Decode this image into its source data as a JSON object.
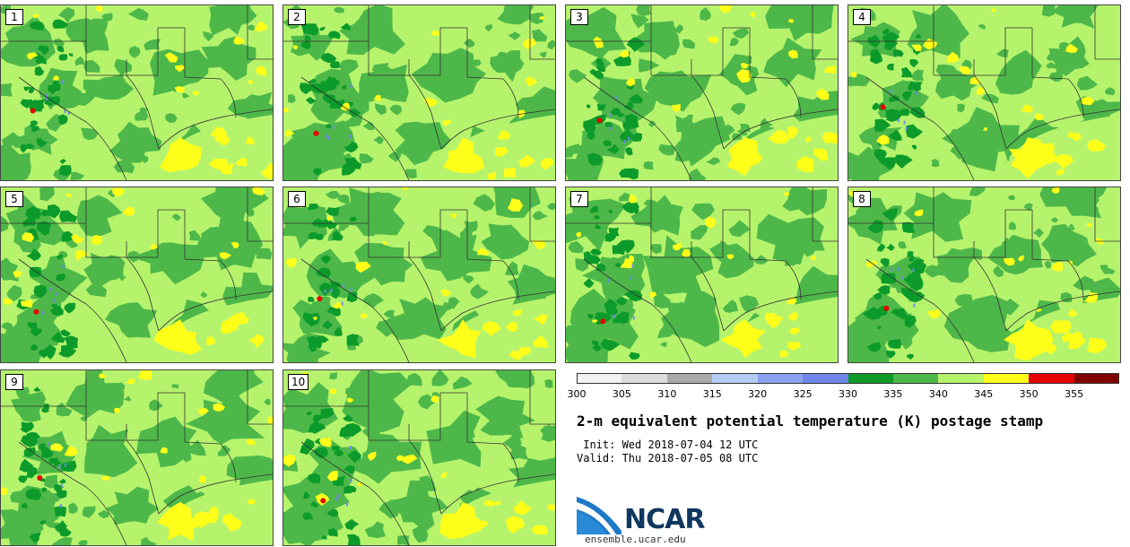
{
  "stamps": [
    {
      "label": "1"
    },
    {
      "label": "2"
    },
    {
      "label": "3"
    },
    {
      "label": "4"
    },
    {
      "label": "5"
    },
    {
      "label": "6"
    },
    {
      "label": "7"
    },
    {
      "label": "8"
    },
    {
      "label": "9"
    },
    {
      "label": "10"
    }
  ],
  "colorbar": {
    "ticks": [
      "300",
      "305",
      "310",
      "315",
      "320",
      "325",
      "330",
      "335",
      "340",
      "345",
      "350",
      "355"
    ],
    "colors": [
      "#f2f2f2",
      "#dcdcdc",
      "#a9a9a9",
      "#b4ccf5",
      "#8aa2ee",
      "#7088ec",
      "#0c9b2a",
      "#4db849",
      "#b6f36c",
      "#ffff1a",
      "#e60000",
      "#800000"
    ]
  },
  "title": "2-m equivalent potential temperature (K) postage stamp",
  "init": " Init: Wed 2018-07-04 12 UTC",
  "valid": "Valid: Thu 2018-07-05 08 UTC",
  "logo": {
    "text": "NCAR"
  },
  "site": "ensemble.ucar.edu",
  "colors": {
    "land_high": "#b6f36c",
    "land_mid": "#4db849",
    "land_low": "#0c9b2a",
    "warm": "#ffff1a",
    "hot": "#e60000",
    "cool": "#7088ec",
    "border": "#333333"
  }
}
